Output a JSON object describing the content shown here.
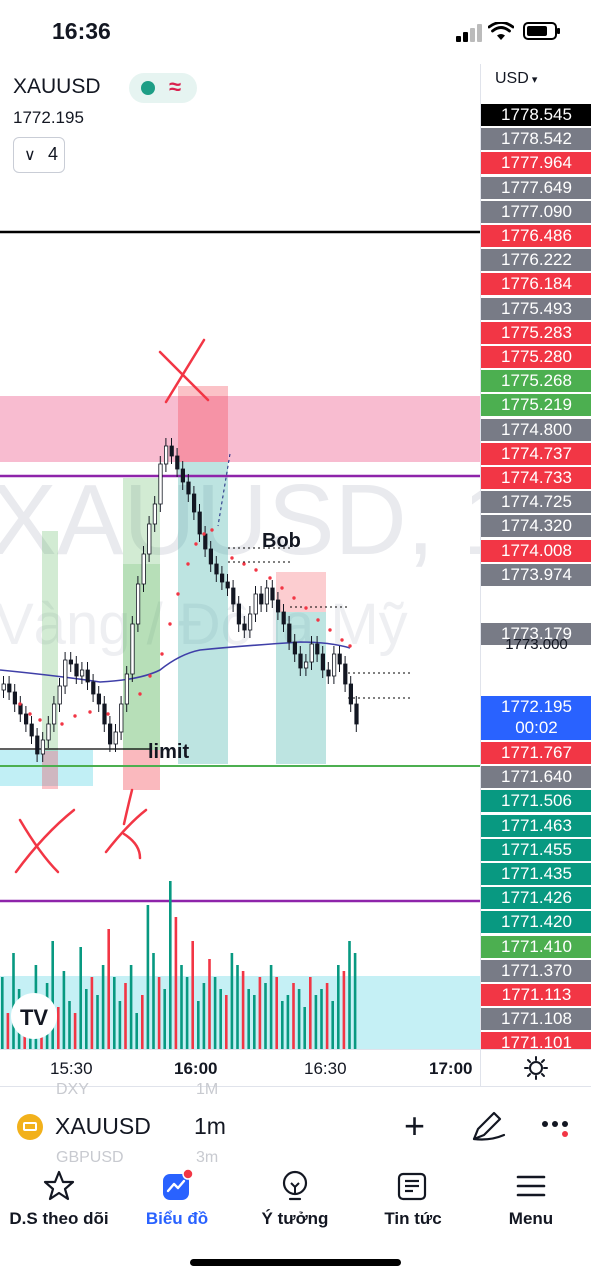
{
  "status": {
    "time": "16:36"
  },
  "legend": {
    "symbol": "XAUUSD",
    "last_price": "1772.195",
    "indicator_count": "4",
    "watermark_symbol": "XAUUSD, 1",
    "watermark_desc": "Vàng / Đô la Mỹ"
  },
  "scale": {
    "currency": "USD",
    "tags": [
      {
        "v": "1778.545",
        "bg": "#000000"
      },
      {
        "v": "1778.542",
        "bg": "#787b86"
      },
      {
        "v": "1777.964",
        "bg": "#f23645"
      },
      {
        "v": "1777.649",
        "bg": "#787b86"
      },
      {
        "v": "1777.090",
        "bg": "#787b86"
      },
      {
        "v": "1776.486",
        "bg": "#f23645"
      },
      {
        "v": "1776.222",
        "bg": "#787b86"
      },
      {
        "v": "1776.184",
        "bg": "#f23645"
      },
      {
        "v": "1775.493",
        "bg": "#787b86"
      },
      {
        "v": "1775.283",
        "bg": "#f23645"
      },
      {
        "v": "1775.280",
        "bg": "#f23645"
      },
      {
        "v": "1775.268",
        "bg": "#4caf50"
      },
      {
        "v": "1775.219",
        "bg": "#4caf50"
      },
      {
        "v": "1774.800",
        "bg": "#787b86"
      },
      {
        "v": "1774.737",
        "bg": "#f23645"
      },
      {
        "v": "1774.733",
        "bg": "#f23645"
      },
      {
        "v": "1774.725",
        "bg": "#787b86"
      },
      {
        "v": "1774.320",
        "bg": "#787b86"
      },
      {
        "v": "1774.008",
        "bg": "#f23645"
      },
      {
        "v": "1773.974",
        "bg": "#787b86"
      }
    ],
    "mid_tag": {
      "v": "1773.179",
      "bg": "#787b86"
    },
    "mid_under": "1773.000",
    "current_tag": {
      "v": "1772.195",
      "countdown": "00:02",
      "bg": "#2962ff"
    },
    "lower_tags": [
      {
        "v": "1771.767",
        "bg": "#f23645"
      },
      {
        "v": "1771.640",
        "bg": "#787b86"
      },
      {
        "v": "1771.506",
        "bg": "#089981"
      },
      {
        "v": "1771.463",
        "bg": "#089981"
      },
      {
        "v": "1771.455",
        "bg": "#089981"
      },
      {
        "v": "1771.435",
        "bg": "#089981"
      },
      {
        "v": "1771.426",
        "bg": "#089981"
      },
      {
        "v": "1771.420",
        "bg": "#089981"
      },
      {
        "v": "1771.410",
        "bg": "#4caf50"
      },
      {
        "v": "1771.370",
        "bg": "#787b86"
      },
      {
        "v": "1771.113",
        "bg": "#f23645"
      },
      {
        "v": "1771.108",
        "bg": "#787b86"
      },
      {
        "v": "1771.101",
        "bg": "#f23645"
      }
    ]
  },
  "annotations": {
    "bob": "Bob",
    "limit": "limit"
  },
  "time_axis": [
    "15:30",
    "16:00",
    "16:30",
    "17:00"
  ],
  "toolbar": {
    "symbol": "XAUUSD",
    "interval": "1m",
    "ghost_symbols": [
      "DXY",
      "GBPUSD"
    ],
    "ghost_intervals": [
      "1M",
      "3m"
    ]
  },
  "nav": [
    {
      "label": "D.S theo dõi",
      "icon": "star-icon"
    },
    {
      "label": "Biểu đồ",
      "icon": "chart-icon"
    },
    {
      "label": "Ý tưởng",
      "icon": "lightbulb-icon"
    },
    {
      "label": "Tin tức",
      "icon": "news-icon"
    },
    {
      "label": "Menu",
      "icon": "hamburger-icon"
    }
  ],
  "colors": {
    "up": "#089981",
    "down": "#f23645",
    "accent": "#2962ff"
  }
}
